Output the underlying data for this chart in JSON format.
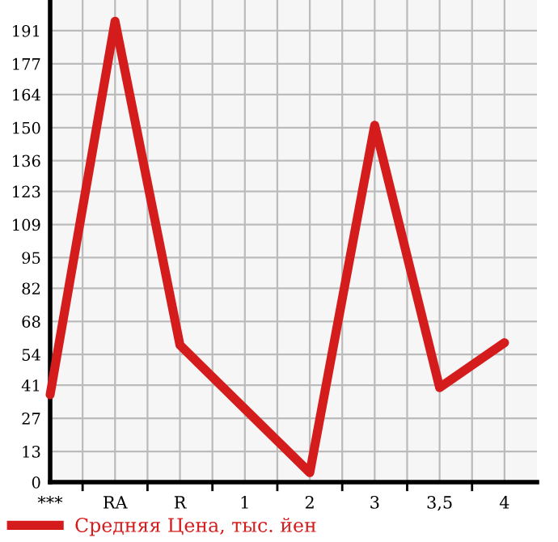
{
  "chart_data": {
    "type": "line",
    "categories": [
      "***",
      "RA",
      "R",
      "1",
      "2",
      "3",
      "3,5",
      "4"
    ],
    "series": [
      {
        "name": "Средняя Цена, тыс. йен",
        "color": "#d41c1c",
        "values": [
          37,
          195,
          58,
          31,
          4,
          151,
          40,
          59
        ]
      }
    ],
    "ylim": [
      0,
      204
    ],
    "yticks": [
      0,
      13,
      27,
      41,
      54,
      68,
      82,
      95,
      109,
      123,
      136,
      150,
      164,
      177,
      191
    ],
    "grid": true,
    "legend": "bottom left",
    "marker": "none",
    "line_style": "solid"
  }
}
